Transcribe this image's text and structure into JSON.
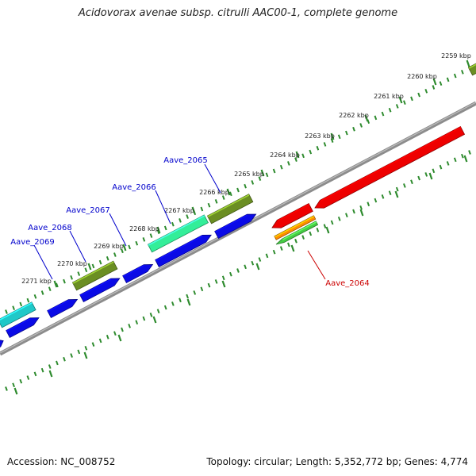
{
  "header": {
    "title": "Acidovorax avenae subsp. citrulli AAC00-1, complete genome"
  },
  "footer": {
    "accession_label": "Accession:",
    "accession": "NC_008752",
    "topology_label": "Topology:",
    "topology": "circular",
    "length_label": "Length:",
    "length": "5,352,772 bp",
    "genes_label": "Genes:",
    "genes": "4,774"
  },
  "colors": {
    "background": "#ffffff",
    "backbone": "#8c8c8c",
    "tick_marks": "#2e8b2e",
    "scale_labels": "#222222",
    "forward_gene_label": "#0000cc",
    "reverse_gene_label": "#cc0000",
    "cds_blue": "#0a0ae6",
    "cds_red": "#ee0000",
    "cds_olive": "#6b8e23",
    "cds_teal": "#20c8c8",
    "cds_aqua": "#33ee99",
    "cds_orange": "#ff8c00",
    "cds_green": "#44cc44"
  },
  "scale": {
    "labels": [
      "2259 kbp",
      "2260 kbp",
      "2261 kbp",
      "2262 kbp",
      "2263 kbp",
      "2264 kbp",
      "2265 kbp",
      "2266 kbp",
      "2267 kbp",
      "2268 kbp",
      "2269 kbp",
      "2270 kbp",
      "2271 kbp"
    ]
  },
  "gene_labels": {
    "forward": [
      "Aave_2065",
      "Aave_2066",
      "Aave_2067",
      "Aave_2068",
      "Aave_2069"
    ],
    "reverse": [
      "Aave_2064"
    ]
  },
  "features": [
    {
      "strand": "forward",
      "color": "cds_blue",
      "shape": "arrow",
      "direction": "right"
    },
    {
      "strand": "forward",
      "color": "cds_blue",
      "shape": "arrow",
      "direction": "right"
    },
    {
      "strand": "forward",
      "color": "cds_blue",
      "shape": "arrow",
      "direction": "right"
    },
    {
      "strand": "forward",
      "color": "cds_blue",
      "shape": "arrow",
      "direction": "right"
    },
    {
      "strand": "forward",
      "color": "cds_blue",
      "shape": "arrow",
      "direction": "right"
    },
    {
      "strand": "forward",
      "color": "cds_blue",
      "shape": "arrow",
      "direction": "right"
    },
    {
      "strand": "forward",
      "color": "cds_blue",
      "shape": "arrow",
      "direction": "right"
    },
    {
      "strand": "forward",
      "color": "cds_teal",
      "shape": "box"
    },
    {
      "strand": "forward",
      "color": "cds_olive",
      "shape": "box"
    },
    {
      "strand": "forward",
      "color": "cds_aqua",
      "shape": "box"
    },
    {
      "strand": "forward",
      "color": "cds_olive",
      "shape": "box"
    },
    {
      "strand": "forward",
      "color": "cds_olive",
      "shape": "box"
    },
    {
      "strand": "reverse",
      "color": "cds_red",
      "shape": "arrow",
      "direction": "left"
    },
    {
      "strand": "reverse",
      "color": "cds_red",
      "shape": "arrow",
      "direction": "left"
    },
    {
      "strand": "reverse",
      "color": "cds_orange",
      "shape": "box"
    },
    {
      "strand": "reverse",
      "color": "cds_green",
      "shape": "arrow",
      "direction": "left"
    }
  ]
}
